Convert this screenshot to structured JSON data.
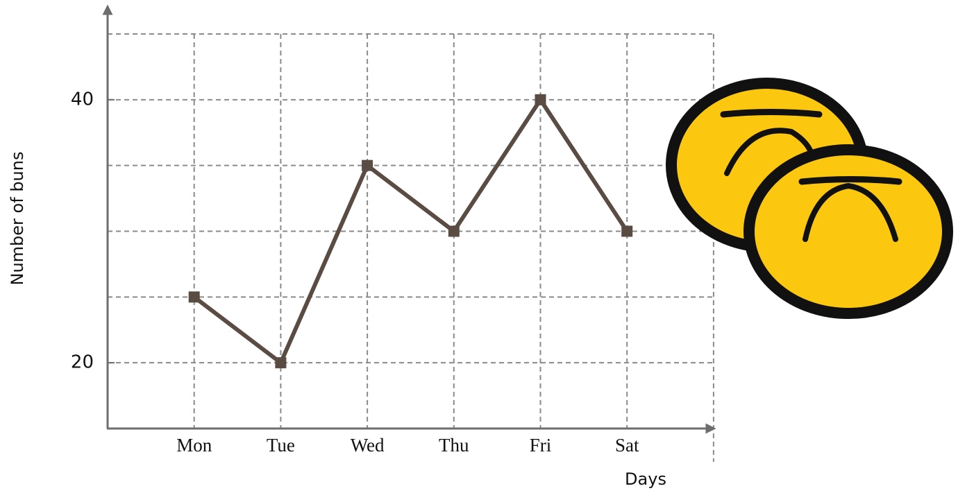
{
  "chart_data": {
    "type": "line",
    "x_label": "Days",
    "y_label": "Number of buns",
    "categories": [
      "Mon",
      "Tue",
      "Wed",
      "Thu",
      "Fri",
      "Sat"
    ],
    "values": [
      25,
      20,
      35,
      30,
      40,
      30
    ],
    "color": "#5a4b43",
    "ylim": [
      15,
      45
    ],
    "yticks": [
      20,
      40
    ],
    "ygrid": [
      20,
      25,
      30,
      35,
      40,
      45
    ],
    "grid": true
  }
}
